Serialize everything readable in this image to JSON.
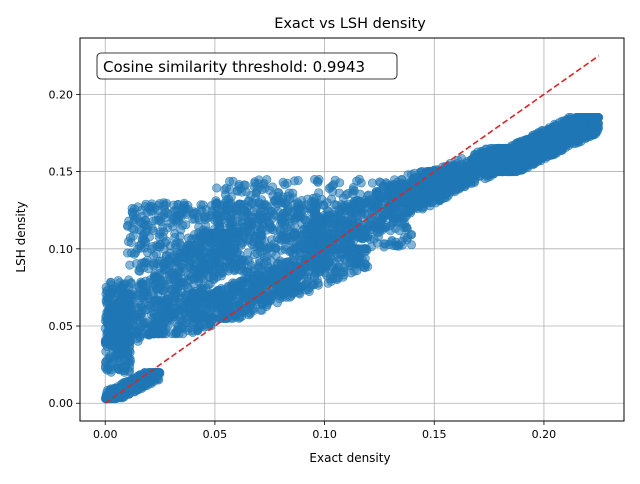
{
  "chart_data": {
    "type": "scatter",
    "title": "Exact vs LSH density",
    "xlabel": "Exact density",
    "ylabel": "LSH density",
    "xlim": [
      -0.0115,
      0.2365
    ],
    "ylim": [
      -0.0115,
      0.2365
    ],
    "xticks": [
      0.0,
      0.05,
      0.1,
      0.15,
      0.2
    ],
    "yticks": [
      0.0,
      0.05,
      0.1,
      0.15,
      0.2
    ],
    "xtick_labels": [
      "0.00",
      "0.05",
      "0.10",
      "0.15",
      "0.20"
    ],
    "ytick_labels": [
      "0.00",
      "0.05",
      "0.10",
      "0.15",
      "0.20"
    ],
    "grid": true,
    "annotation": "Cosine similarity threshold: 0.9943",
    "point_color": "#1f77b4",
    "point_alpha": 0.55,
    "reference_line": {
      "x": [
        0.0,
        0.225
      ],
      "y": [
        0.0,
        0.225
      ],
      "color": "#d62728",
      "style": "dashed"
    },
    "clusters": [
      {
        "x": [
          0.0,
          0.025
        ],
        "y": [
          0.003,
          0.02
        ],
        "trend": "rising",
        "n": 260
      },
      {
        "x": [
          0.0,
          0.012
        ],
        "y": [
          0.02,
          0.08
        ],
        "trend": "flat",
        "n": 260
      },
      {
        "x": [
          0.0,
          0.06
        ],
        "y": [
          0.04,
          0.11
        ],
        "trend": "rising",
        "n": 600
      },
      {
        "x": [
          0.01,
          0.1
        ],
        "y": [
          0.085,
          0.13
        ],
        "trend": "flat",
        "n": 600
      },
      {
        "x": [
          0.05,
          0.14
        ],
        "y": [
          0.1,
          0.145
        ],
        "trend": "flat",
        "n": 400
      },
      {
        "x": [
          0.02,
          0.09
        ],
        "y": [
          0.045,
          0.085
        ],
        "trend": "rising",
        "n": 350
      },
      {
        "x": [
          0.04,
          0.12
        ],
        "y": [
          0.055,
          0.1
        ],
        "trend": "rising",
        "n": 450
      },
      {
        "x": [
          0.09,
          0.16
        ],
        "y": [
          0.1,
          0.15
        ],
        "trend": "rising",
        "n": 500
      },
      {
        "x": [
          0.13,
          0.19
        ],
        "y": [
          0.13,
          0.165
        ],
        "trend": "rising",
        "n": 600
      },
      {
        "x": [
          0.175,
          0.225
        ],
        "y": [
          0.15,
          0.185
        ],
        "trend": "rising",
        "n": 900
      }
    ]
  }
}
